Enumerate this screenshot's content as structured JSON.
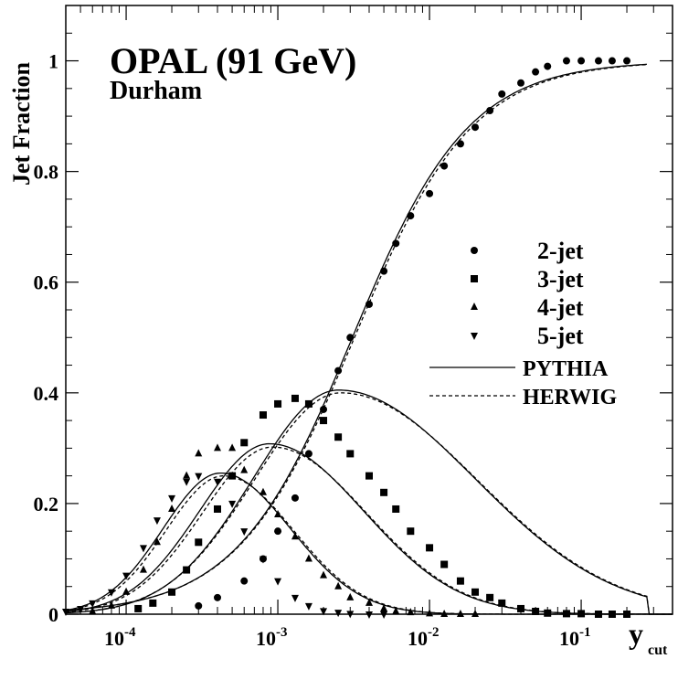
{
  "chart_data": {
    "type": "scatter",
    "title": "OPAL (91 GeV)",
    "subtitle": "Durham",
    "ylabel": "Jet Fraction",
    "xlabel": "y",
    "xlabel_sub": "cut",
    "xscale": "log",
    "xlim": [
      4e-05,
      0.4
    ],
    "ylim": [
      0,
      1.1
    ],
    "xticks": [
      {
        "value": 0.0001,
        "base": "10",
        "exp": "-4"
      },
      {
        "value": 0.001,
        "base": "10",
        "exp": "-3"
      },
      {
        "value": 0.01,
        "base": "10",
        "exp": "-2"
      },
      {
        "value": 0.1,
        "base": "10",
        "exp": "-1"
      }
    ],
    "yticks": [
      {
        "value": 0,
        "label": "0"
      },
      {
        "value": 0.2,
        "label": "0.2"
      },
      {
        "value": 0.4,
        "label": "0.4"
      },
      {
        "value": 0.6,
        "label": "0.6"
      },
      {
        "value": 0.8,
        "label": "0.8"
      },
      {
        "value": 1,
        "label": "1"
      }
    ],
    "legend": {
      "position": "right",
      "entries": [
        "2-jet",
        "3-jet",
        "4-jet",
        "5-jet",
        "PYTHIA",
        "HERWIG"
      ]
    },
    "series": [
      {
        "name": "2-jet",
        "marker": "circle",
        "x": [
          0.0003,
          0.0004,
          0.0006,
          0.0008,
          0.001,
          0.0013,
          0.0016,
          0.002,
          0.0025,
          0.003,
          0.004,
          0.005,
          0.006,
          0.0075,
          0.01,
          0.0125,
          0.016,
          0.02,
          0.025,
          0.03,
          0.04,
          0.05,
          0.06,
          0.08,
          0.1,
          0.13,
          0.16,
          0.2
        ],
        "y": [
          0.015,
          0.03,
          0.06,
          0.1,
          0.15,
          0.21,
          0.29,
          0.37,
          0.44,
          0.5,
          0.56,
          0.62,
          0.67,
          0.72,
          0.76,
          0.81,
          0.85,
          0.88,
          0.91,
          0.94,
          0.96,
          0.98,
          0.99,
          1.0,
          1.0,
          1.0,
          1.0,
          1.0
        ]
      },
      {
        "name": "3-jet",
        "marker": "square",
        "x": [
          0.00012,
          0.00015,
          0.0002,
          0.00025,
          0.0003,
          0.0004,
          0.0005,
          0.0006,
          0.0008,
          0.001,
          0.0013,
          0.0016,
          0.002,
          0.0025,
          0.003,
          0.004,
          0.005,
          0.006,
          0.0075,
          0.01,
          0.0125,
          0.016,
          0.02,
          0.025,
          0.03,
          0.04,
          0.05,
          0.06,
          0.08,
          0.1,
          0.13,
          0.16,
          0.2
        ],
        "y": [
          0.01,
          0.02,
          0.04,
          0.08,
          0.13,
          0.19,
          0.25,
          0.31,
          0.36,
          0.38,
          0.39,
          0.38,
          0.35,
          0.32,
          0.29,
          0.25,
          0.22,
          0.19,
          0.15,
          0.12,
          0.09,
          0.06,
          0.04,
          0.03,
          0.02,
          0.01,
          0.005,
          0.002,
          0.001,
          0.001,
          0.0,
          0.0,
          0.0
        ]
      },
      {
        "name": "4-jet",
        "marker": "triangle-up",
        "x": [
          6e-05,
          8e-05,
          0.0001,
          0.00013,
          0.00016,
          0.0002,
          0.00025,
          0.0003,
          0.0004,
          0.0005,
          0.0006,
          0.0008,
          0.001,
          0.0013,
          0.0016,
          0.002,
          0.0025,
          0.003,
          0.004,
          0.005,
          0.006,
          0.0075,
          0.01,
          0.0125,
          0.016,
          0.02
        ],
        "y": [
          0.005,
          0.015,
          0.04,
          0.08,
          0.13,
          0.19,
          0.25,
          0.29,
          0.3,
          0.3,
          0.26,
          0.22,
          0.18,
          0.14,
          0.1,
          0.07,
          0.05,
          0.03,
          0.02,
          0.01,
          0.005,
          0.003,
          0.001,
          0.0,
          0.0,
          0.0
        ]
      },
      {
        "name": "5-jet",
        "marker": "triangle-down",
        "x": [
          4e-05,
          5e-05,
          6e-05,
          8e-05,
          0.0001,
          0.00013,
          0.00016,
          0.0002,
          0.00025,
          0.0003,
          0.0004,
          0.0005,
          0.0006,
          0.0008,
          0.001,
          0.0013,
          0.0016,
          0.002,
          0.0025,
          0.003,
          0.004,
          0.005
        ],
        "y": [
          0.005,
          0.01,
          0.02,
          0.04,
          0.07,
          0.12,
          0.17,
          0.21,
          0.24,
          0.25,
          0.24,
          0.2,
          0.15,
          0.1,
          0.06,
          0.03,
          0.015,
          0.006,
          0.003,
          0.001,
          0.0,
          0.0
        ]
      }
    ],
    "curves": [
      {
        "legend": "PYTHIA",
        "style": "solid",
        "peaks": [
          {
            "for": "2-jet",
            "type": "sigmoid",
            "center": 0.0031,
            "width": 0.92,
            "max": 1.0
          },
          {
            "for": "3-jet",
            "center": 0.0025,
            "amp": 0.405,
            "wl": 0.56,
            "wr": 0.9
          },
          {
            "for": "4-jet",
            "center": 0.00088,
            "amp": 0.308,
            "wl": 0.46,
            "wr": 0.62
          },
          {
            "for": "5-jet",
            "center": 0.00042,
            "amp": 0.255,
            "wl": 0.38,
            "wr": 0.46
          }
        ]
      },
      {
        "legend": "HERWIG",
        "style": "dashed",
        "peaks": [
          {
            "for": "2-jet",
            "type": "sigmoid",
            "center": 0.0032,
            "width": 0.93,
            "max": 1.0
          },
          {
            "for": "3-jet",
            "center": 0.0026,
            "amp": 0.4,
            "wl": 0.57,
            "wr": 0.9
          },
          {
            "for": "4-jet",
            "center": 0.00092,
            "amp": 0.302,
            "wl": 0.46,
            "wr": 0.62
          },
          {
            "for": "5-jet",
            "center": 0.00044,
            "amp": 0.25,
            "wl": 0.38,
            "wr": 0.46
          }
        ]
      }
    ]
  }
}
